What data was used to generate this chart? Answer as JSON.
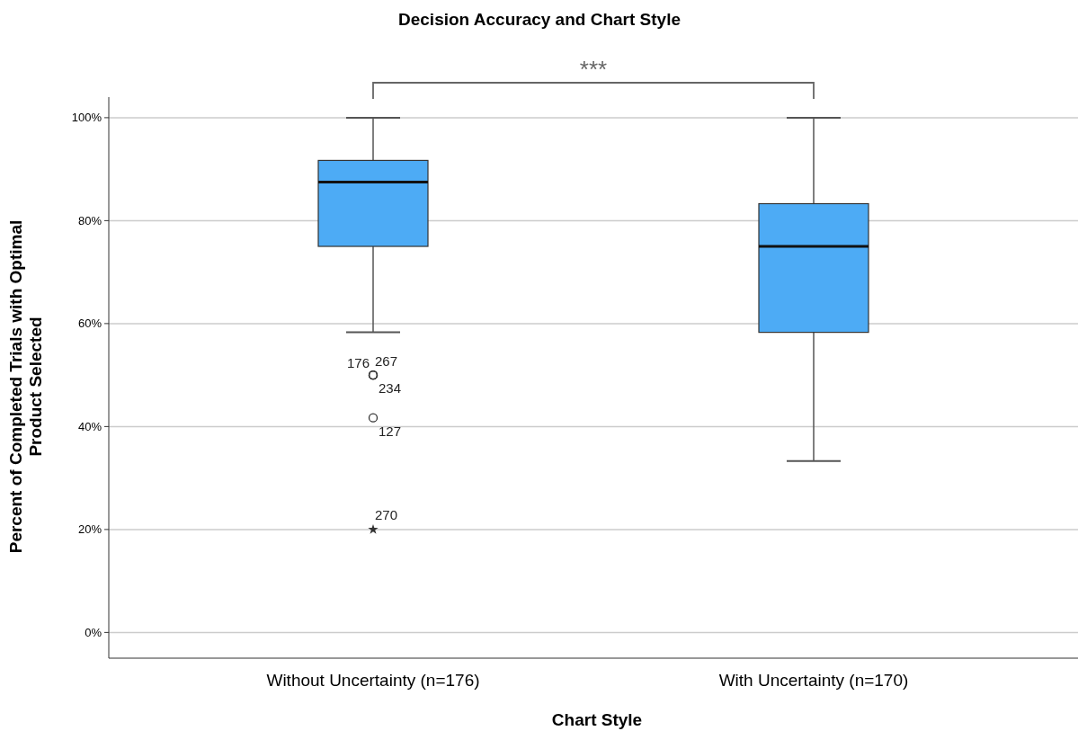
{
  "chart_data": {
    "type": "box",
    "title": "Decision Accuracy and Chart Style",
    "xlabel": "Chart Style",
    "ylabel": "Percent of Completed Trials with Optimal Product Selected",
    "categories": [
      "Without Uncertainty (n=176)",
      "With Uncertainty (n=170)"
    ],
    "color": "#4dabf5",
    "boxes": [
      {
        "low": 58.3,
        "q1": 75,
        "median": 87.5,
        "q3": 91.7,
        "high": 100
      },
      {
        "low": 33.3,
        "q1": 58.3,
        "median": 75,
        "q3": 83.3,
        "high": 100
      }
    ],
    "series": [
      {
        "type": "scatter",
        "color": "#333333",
        "x": [
          "Without Uncertainty (n=176)",
          "Without Uncertainty (n=176)",
          "Without Uncertainty (n=176)",
          "Without Uncertainty (n=176)",
          "Without Uncertainty (n=176)"
        ],
        "values": [
          50,
          50,
          50,
          41.7,
          20
        ]
      }
    ],
    "ylim": [
      -5,
      104
    ],
    "yticks": [
      {
        "value": 0,
        "label": "0%"
      },
      {
        "value": 20,
        "label": "20%"
      },
      {
        "value": 40,
        "label": "40%"
      },
      {
        "value": 60,
        "label": "60%"
      },
      {
        "value": 80,
        "label": "80%"
      },
      {
        "value": 100,
        "label": "100%"
      }
    ],
    "grid": "y",
    "annotations": [
      "***",
      {
        "text": "176",
        "x": "Without Uncertainty (n=176)",
        "y": 50
      },
      {
        "text": "267",
        "x": "Without Uncertainty (n=176)",
        "y": 50
      },
      {
        "text": "234",
        "x": "Without Uncertainty (n=176)",
        "y": 50
      },
      {
        "text": "127",
        "x": "Without Uncertainty (n=176)",
        "y": 41.7
      },
      {
        "text": "270",
        "x": "Without Uncertainty (n=176)",
        "y": 20
      }
    ]
  }
}
